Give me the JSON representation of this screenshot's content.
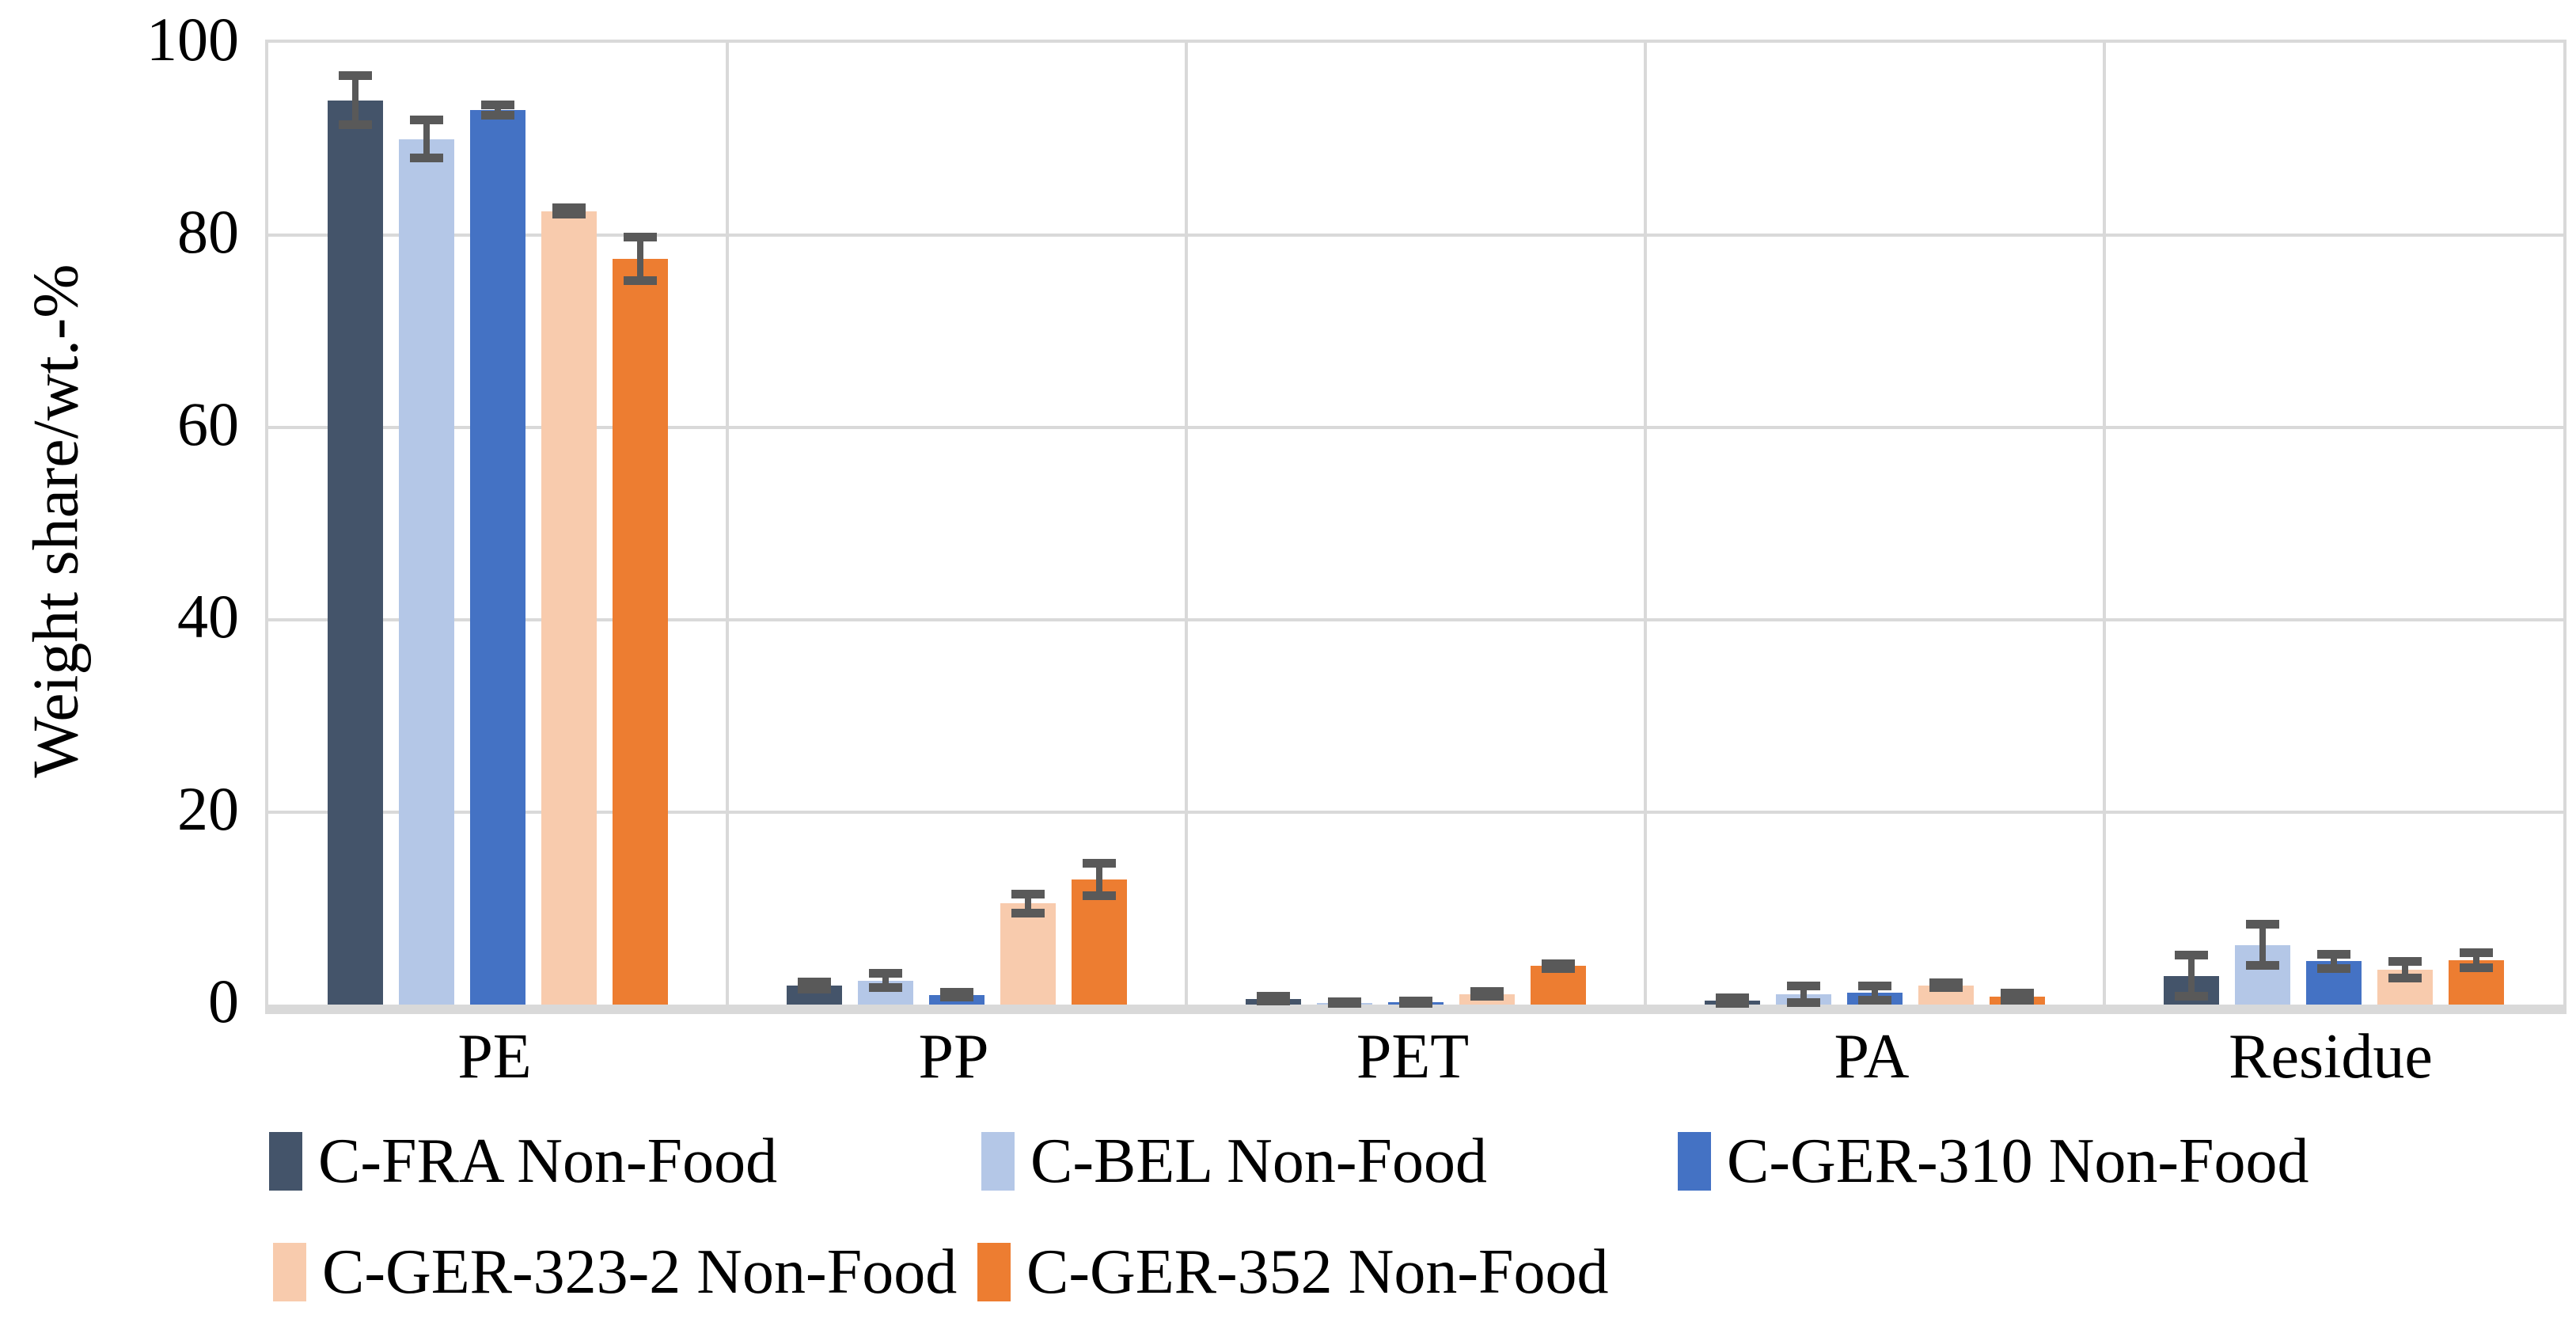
{
  "chart_data": {
    "type": "bar",
    "title": "",
    "xlabel": "",
    "ylabel": "Weight share/wt.-%",
    "ylim": [
      0,
      100
    ],
    "yticks": [
      0,
      20,
      40,
      60,
      80,
      100
    ],
    "grid": true,
    "legend_position": "bottom",
    "categories": [
      "PE",
      "PP",
      "PET",
      "PA",
      "Residue"
    ],
    "series": [
      {
        "name": "C-FRA Non-Food",
        "color": "#44546A",
        "values": [
          94,
          2,
          0.6,
          0.4,
          3
        ],
        "errors": [
          2.6,
          0.4,
          0.3,
          0.3,
          2.2
        ]
      },
      {
        "name": "C-BEL Non-Food",
        "color": "#B4C7E7",
        "values": [
          90,
          2.5,
          0.2,
          1.1,
          6.2
        ],
        "errors": [
          2.0,
          0.8,
          0.15,
          0.9,
          2.2
        ]
      },
      {
        "name": "C-GER-310 Non-Food",
        "color": "#4472C4",
        "values": [
          93,
          1,
          0.25,
          1.2,
          4.5
        ],
        "errors": [
          0.6,
          0.3,
          0.15,
          0.8,
          0.8
        ]
      },
      {
        "name": "C-GER-323-2 Non-Food",
        "color": "#F8CBAD",
        "values": [
          82.5,
          10.5,
          1.1,
          2,
          3.6
        ],
        "errors": [
          0.4,
          1.0,
          0.3,
          0.3,
          0.9
        ]
      },
      {
        "name": "C-GER-352 Non-Food",
        "color": "#ED7D31",
        "values": [
          77.5,
          13,
          4,
          0.8,
          4.6
        ],
        "errors": [
          2.3,
          1.7,
          0.3,
          0.4,
          0.8
        ]
      }
    ],
    "error_bar_color": "#595959",
    "gridline_color": "#D9D9D9",
    "axis_line_color": "#D9D9D9",
    "text_color": "#000000"
  }
}
